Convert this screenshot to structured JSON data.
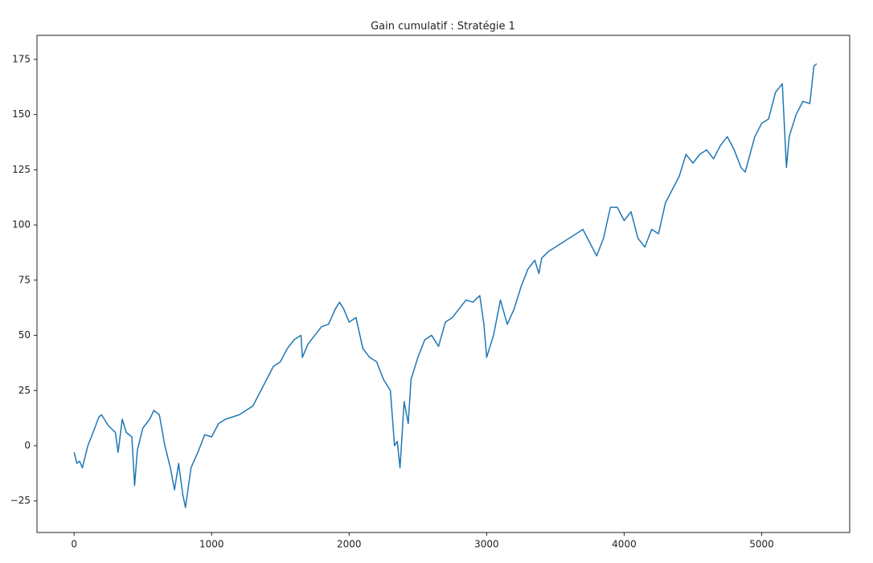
{
  "chart_data": {
    "type": "line",
    "title": "Gain cumulatif : Stratégie 1",
    "x": [
      0,
      20,
      40,
      60,
      100,
      150,
      180,
      200,
      250,
      300,
      320,
      350,
      380,
      420,
      440,
      460,
      500,
      550,
      580,
      620,
      660,
      700,
      730,
      760,
      790,
      810,
      850,
      900,
      950,
      1000,
      1050,
      1100,
      1200,
      1300,
      1350,
      1400,
      1450,
      1500,
      1550,
      1600,
      1650,
      1660,
      1700,
      1750,
      1800,
      1850,
      1900,
      1930,
      1960,
      2000,
      2050,
      2100,
      2150,
      2200,
      2250,
      2300,
      2330,
      2350,
      2370,
      2400,
      2430,
      2450,
      2500,
      2550,
      2600,
      2650,
      2700,
      2750,
      2800,
      2850,
      2900,
      2950,
      2980,
      3000,
      3050,
      3100,
      3150,
      3200,
      3250,
      3300,
      3350,
      3380,
      3400,
      3450,
      3500,
      3550,
      3600,
      3650,
      3700,
      3750,
      3800,
      3850,
      3900,
      3950,
      4000,
      4050,
      4100,
      4150,
      4200,
      4250,
      4300,
      4350,
      4400,
      4450,
      4500,
      4550,
      4600,
      4650,
      4700,
      4750,
      4800,
      4850,
      4880,
      4950,
      5000,
      5050,
      5100,
      5150,
      5180,
      5200,
      5250,
      5300,
      5350,
      5380,
      5400
    ],
    "series": [
      {
        "name": "Gain cumulatif",
        "color": "#1f77b4",
        "values": [
          -3,
          -8,
          -7,
          -10,
          0,
          8,
          13,
          14,
          9,
          6,
          -3,
          12,
          6,
          4,
          -18,
          -2,
          8,
          12,
          16,
          14,
          0,
          -10,
          -20,
          -8,
          -22,
          -28,
          -10,
          -3,
          5,
          4,
          10,
          12,
          14,
          18,
          24,
          30,
          36,
          38,
          44,
          48,
          50,
          40,
          46,
          50,
          54,
          55,
          62,
          65,
          62,
          56,
          58,
          44,
          40,
          38,
          30,
          25,
          0,
          2,
          -10,
          20,
          10,
          30,
          40,
          48,
          50,
          45,
          56,
          58,
          62,
          66,
          65,
          68,
          55,
          40,
          50,
          66,
          55,
          62,
          72,
          80,
          84,
          78,
          85,
          88,
          90,
          92,
          94,
          96,
          98,
          92,
          86,
          94,
          108,
          108,
          102,
          106,
          94,
          90,
          98,
          96,
          110,
          116,
          122,
          132,
          128,
          132,
          134,
          130,
          136,
          140,
          134,
          126,
          124,
          140,
          146,
          148,
          160,
          164,
          126,
          140,
          150,
          156,
          155,
          172,
          173
        ]
      }
    ],
    "xlim": [
      -270,
      5640
    ],
    "ylim": [
      -39.3,
      185.9
    ],
    "xticks": [
      0,
      1000,
      2000,
      3000,
      4000,
      5000
    ],
    "yticks": [
      {
        "value": -25,
        "label": "−25"
      },
      0,
      25,
      50,
      75,
      100,
      125,
      150,
      175
    ]
  }
}
